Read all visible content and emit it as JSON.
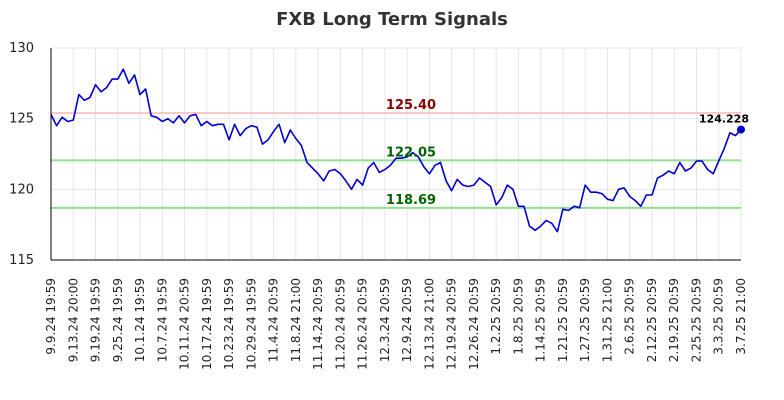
{
  "chart_data": {
    "type": "line",
    "title": "FXB Long Term Signals",
    "xlabel": "",
    "ylabel": "",
    "ylim": [
      115,
      130
    ],
    "yticks": [
      "115",
      "120",
      "125",
      "130"
    ],
    "grid": true,
    "x_tick_labels": [
      "9.9.24 19:59",
      "9.13.24 20:00",
      "9.19.24 19:59",
      "9.25.24 19:59",
      "10.1.24 19:59",
      "10.7.24 19:59",
      "10.11.24 20:59",
      "10.17.24 19:59",
      "10.23.24 19:59",
      "10.29.24 19:59",
      "11.4.24 20:59",
      "11.8.24 21:00",
      "11.14.24 20:59",
      "11.20.24 20:59",
      "11.26.24 20:59",
      "12.3.24 20:59",
      "12.9.24 20:59",
      "12.13.24 21:00",
      "12.19.24 20:59",
      "12.26.24 20:59",
      "1.2.25 20:59",
      "1.8.25 20:59",
      "1.14.25 20:59",
      "1.21.25 20:59",
      "1.27.25 20:59",
      "1.31.25 21:00",
      "2.6.25 20:59",
      "2.12.25 20:59",
      "2.19.25 20:59",
      "2.25.25 20:59",
      "3.3.25 20:59",
      "3.7.25 21:00"
    ],
    "series": [
      {
        "color": "#0000cc",
        "values": [
          125.3,
          124.5,
          125.1,
          124.8,
          124.9,
          126.7,
          126.3,
          126.5,
          127.4,
          126.9,
          127.2,
          127.8,
          127.8,
          128.5,
          127.5,
          128.1,
          126.7,
          127.1,
          125.2,
          125.1,
          124.8,
          125.0,
          124.7,
          125.2,
          124.7,
          125.2,
          125.3,
          124.5,
          124.8,
          124.5,
          124.6,
          124.6,
          123.5,
          124.6,
          123.8,
          124.3,
          124.5,
          124.4,
          123.2,
          123.5,
          124.1,
          124.6,
          123.3,
          124.2,
          123.6,
          123.1,
          121.9,
          121.5,
          121.1,
          120.6,
          121.3,
          121.4,
          121.1,
          120.6,
          120.0,
          120.7,
          120.3,
          121.5,
          121.9,
          121.2,
          121.4,
          121.7,
          122.2,
          122.2,
          122.3,
          122.6,
          122.3,
          121.6,
          121.1,
          121.7,
          121.9,
          120.6,
          119.9,
          120.7,
          120.3,
          120.2,
          120.3,
          120.8,
          120.5,
          120.2,
          118.9,
          119.4,
          120.3,
          120.0,
          118.8,
          118.8,
          117.4,
          117.1,
          117.4,
          117.8,
          117.6,
          117.0,
          118.6,
          118.5,
          118.8,
          118.7,
          120.3,
          119.8,
          119.8,
          119.7,
          119.3,
          119.2,
          120.0,
          120.1,
          119.5,
          119.2,
          118.8,
          119.6,
          119.6,
          120.8,
          121.0,
          121.3,
          121.1,
          121.9,
          121.3,
          121.5,
          122.0,
          122.0,
          121.4,
          121.1,
          122.0,
          122.9,
          124.0,
          123.8,
          124.228
        ]
      }
    ],
    "levels": [
      {
        "value": 125.4,
        "label": "125.40",
        "line_color": "#ffc8c8",
        "text_color": "#8b0000"
      },
      {
        "value": 122.05,
        "label": "122.05",
        "line_color": "#90e090",
        "text_color": "#006400"
      },
      {
        "value": 118.69,
        "label": "118.69",
        "line_color": "#90e090",
        "text_color": "#006400"
      }
    ],
    "last_value_label": "124.228",
    "last_point_color": "#0000cc"
  }
}
